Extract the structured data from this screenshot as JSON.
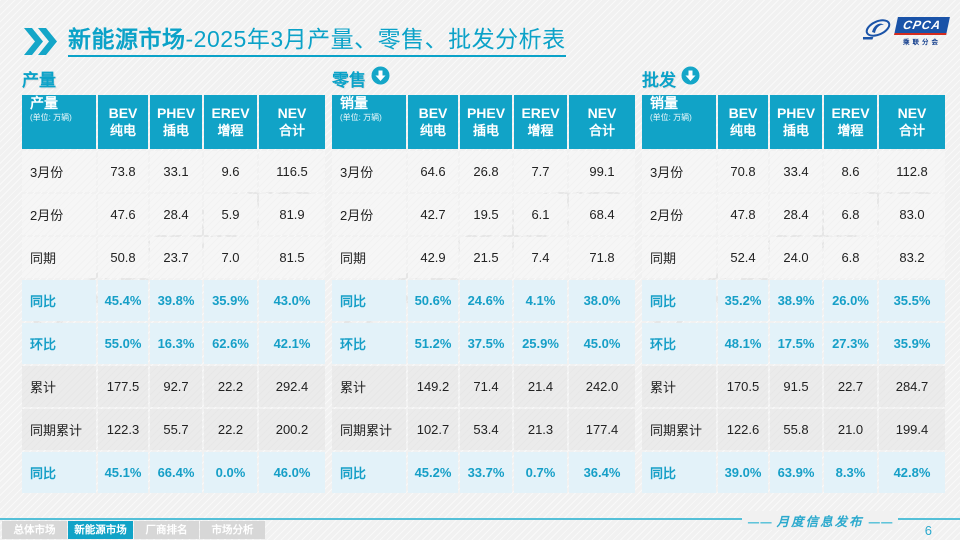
{
  "header": {
    "title_bold": "新能源市场",
    "title_rest": "-2025年3月产量、零售、批发分析表",
    "logo": {
      "name": "CPCA",
      "subtext": "乘联分会",
      "icon": "cpca-swirl-icon"
    }
  },
  "watermark": "CPCA 乘联分会",
  "tables": [
    {
      "section": "产量",
      "corner_label": "产量",
      "corner_unit": "(单位: 万辆)",
      "columns": [
        {
          "en": "BEV",
          "zh": "纯电"
        },
        {
          "en": "PHEV",
          "zh": "插电"
        },
        {
          "en": "EREV",
          "zh": "增程"
        },
        {
          "en": "NEV",
          "zh": "合计"
        }
      ],
      "rows": [
        {
          "label": "3月份",
          "type": "normal",
          "values": [
            "73.8",
            "33.1",
            "9.6",
            "116.5"
          ]
        },
        {
          "label": "2月份",
          "type": "normal",
          "values": [
            "47.6",
            "28.4",
            "5.9",
            "81.9"
          ]
        },
        {
          "label": "同期",
          "type": "normal",
          "values": [
            "50.8",
            "23.7",
            "7.0",
            "81.5"
          ]
        },
        {
          "label": "同比",
          "type": "pct",
          "values": [
            "45.4%",
            "39.8%",
            "35.9%",
            "43.0%"
          ]
        },
        {
          "label": "环比",
          "type": "pct",
          "values": [
            "55.0%",
            "16.3%",
            "62.6%",
            "42.1%"
          ]
        },
        {
          "label": "累计",
          "type": "gray",
          "values": [
            "177.5",
            "92.7",
            "22.2",
            "292.4"
          ]
        },
        {
          "label": "同期累计",
          "type": "gray",
          "values": [
            "122.3",
            "55.7",
            "22.2",
            "200.2"
          ]
        },
        {
          "label": "同比",
          "type": "pct",
          "values": [
            "45.1%",
            "66.4%",
            "0.0%",
            "46.0%"
          ]
        }
      ]
    },
    {
      "section": "零售",
      "corner_label": "销量",
      "corner_unit": "(单位: 万辆)",
      "columns": [
        {
          "en": "BEV",
          "zh": "纯电"
        },
        {
          "en": "PHEV",
          "zh": "插电"
        },
        {
          "en": "EREV",
          "zh": "增程"
        },
        {
          "en": "NEV",
          "zh": "合计"
        }
      ],
      "rows": [
        {
          "label": "3月份",
          "type": "normal",
          "values": [
            "64.6",
            "26.8",
            "7.7",
            "99.1"
          ]
        },
        {
          "label": "2月份",
          "type": "normal",
          "values": [
            "42.7",
            "19.5",
            "6.1",
            "68.4"
          ]
        },
        {
          "label": "同期",
          "type": "normal",
          "values": [
            "42.9",
            "21.5",
            "7.4",
            "71.8"
          ]
        },
        {
          "label": "同比",
          "type": "pct",
          "values": [
            "50.6%",
            "24.6%",
            "4.1%",
            "38.0%"
          ]
        },
        {
          "label": "环比",
          "type": "pct",
          "values": [
            "51.2%",
            "37.5%",
            "25.9%",
            "45.0%"
          ]
        },
        {
          "label": "累计",
          "type": "gray",
          "values": [
            "149.2",
            "71.4",
            "21.4",
            "242.0"
          ]
        },
        {
          "label": "同期累计",
          "type": "gray",
          "values": [
            "102.7",
            "53.4",
            "21.3",
            "177.4"
          ]
        },
        {
          "label": "同比",
          "type": "pct",
          "values": [
            "45.2%",
            "33.7%",
            "0.7%",
            "36.4%"
          ]
        }
      ]
    },
    {
      "section": "批发",
      "corner_label": "销量",
      "corner_unit": "(单位: 万辆)",
      "columns": [
        {
          "en": "BEV",
          "zh": "纯电"
        },
        {
          "en": "PHEV",
          "zh": "插电"
        },
        {
          "en": "EREV",
          "zh": "增程"
        },
        {
          "en": "NEV",
          "zh": "合计"
        }
      ],
      "rows": [
        {
          "label": "3月份",
          "type": "normal",
          "values": [
            "70.8",
            "33.4",
            "8.6",
            "112.8"
          ]
        },
        {
          "label": "2月份",
          "type": "normal",
          "values": [
            "47.8",
            "28.4",
            "6.8",
            "83.0"
          ]
        },
        {
          "label": "同期",
          "type": "normal",
          "values": [
            "52.4",
            "24.0",
            "6.8",
            "83.2"
          ]
        },
        {
          "label": "同比",
          "type": "pct",
          "values": [
            "35.2%",
            "38.9%",
            "26.0%",
            "35.5%"
          ]
        },
        {
          "label": "环比",
          "type": "pct",
          "values": [
            "48.1%",
            "17.5%",
            "27.3%",
            "35.9%"
          ]
        },
        {
          "label": "累计",
          "type": "gray",
          "values": [
            "170.5",
            "91.5",
            "22.7",
            "284.7"
          ]
        },
        {
          "label": "同期累计",
          "type": "gray",
          "values": [
            "122.6",
            "55.8",
            "21.0",
            "199.4"
          ]
        },
        {
          "label": "同比",
          "type": "pct",
          "values": [
            "39.0%",
            "63.9%",
            "8.3%",
            "42.8%"
          ]
        }
      ]
    }
  ],
  "footer": {
    "tabs": [
      {
        "label": "总体市场",
        "active": false
      },
      {
        "label": "新能源市场",
        "active": true
      },
      {
        "label": "厂商排名",
        "active": false
      },
      {
        "label": "市场分析",
        "active": false
      }
    ],
    "publication": "月度信息发布",
    "page_number": "6"
  }
}
